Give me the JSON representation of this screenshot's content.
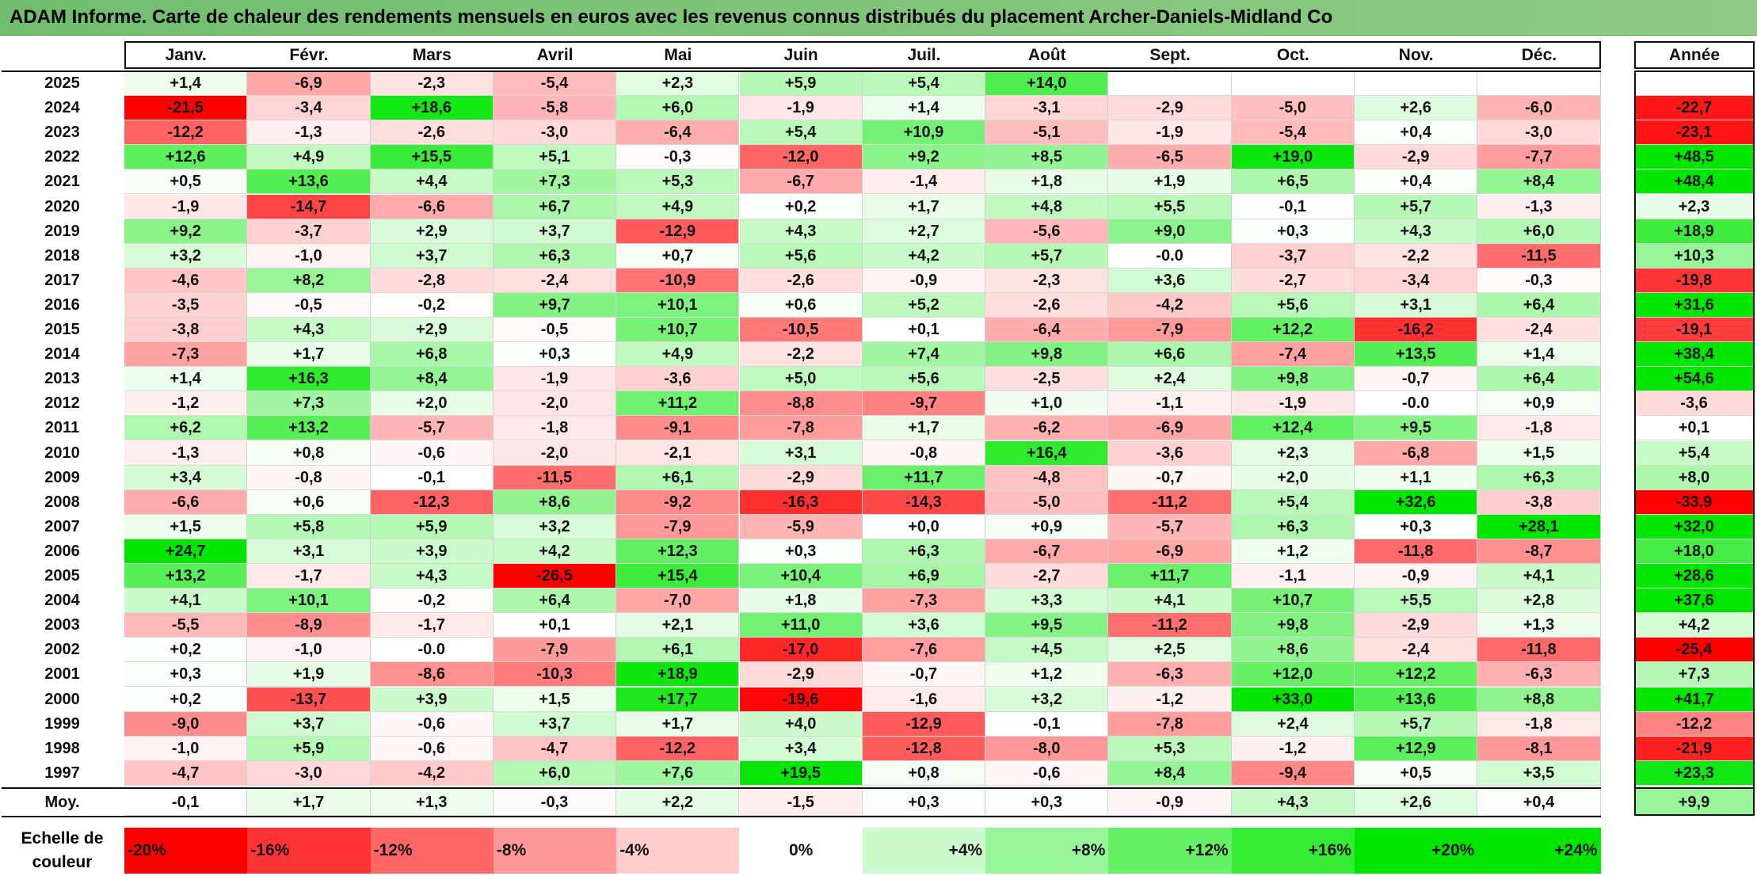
{
  "title": "ADAM Informe. Carte de chaleur des rendements mensuels en euros avec les revenus connus distribués du placement Archer-Daniels-Midland Co",
  "chart_data": {
    "type": "heatmap",
    "columns": [
      "Janv.",
      "Févr.",
      "Mars",
      "Avril",
      "Mai",
      "Juin",
      "Juil.",
      "Août",
      "Sept.",
      "Oct.",
      "Nov.",
      "Déc."
    ],
    "annual_header": "Année",
    "rows": [
      {
        "year": "2025",
        "values": [
          1.4,
          -6.9,
          -2.3,
          -5.4,
          2.3,
          5.9,
          5.4,
          14.0,
          null,
          null,
          null,
          null
        ],
        "annual": null
      },
      {
        "year": "2024",
        "values": [
          -21.5,
          -3.4,
          18.6,
          -5.8,
          6.0,
          -1.9,
          1.4,
          -3.1,
          -2.9,
          -5.0,
          2.6,
          -6.0
        ],
        "annual": -22.7
      },
      {
        "year": "2023",
        "values": [
          -12.2,
          -1.3,
          -2.6,
          -3.0,
          -6.4,
          5.4,
          10.9,
          -5.1,
          -1.9,
          -5.4,
          0.4,
          -3.0
        ],
        "annual": -23.1
      },
      {
        "year": "2022",
        "values": [
          12.6,
          4.9,
          15.5,
          5.1,
          -0.3,
          -12.0,
          9.2,
          8.5,
          -6.5,
          19.0,
          -2.9,
          -7.7
        ],
        "annual": 48.5
      },
      {
        "year": "2021",
        "values": [
          0.5,
          13.6,
          4.4,
          7.3,
          5.3,
          -6.7,
          -1.4,
          1.8,
          1.9,
          6.5,
          0.4,
          8.4
        ],
        "annual": 48.4
      },
      {
        "year": "2020",
        "values": [
          -1.9,
          -14.7,
          -6.6,
          6.7,
          4.9,
          0.2,
          1.7,
          4.8,
          5.5,
          -0.1,
          5.7,
          -1.3
        ],
        "annual": 2.3
      },
      {
        "year": "2019",
        "values": [
          9.2,
          -3.7,
          2.9,
          3.7,
          -12.9,
          4.3,
          2.7,
          -5.6,
          9.0,
          0.3,
          4.3,
          6.0
        ],
        "annual": 18.9
      },
      {
        "year": "2018",
        "values": [
          3.2,
          -1.0,
          3.7,
          6.3,
          0.7,
          5.6,
          4.2,
          5.7,
          "-0.0",
          -3.7,
          -2.2,
          -11.5
        ],
        "annual": 10.3
      },
      {
        "year": "2017",
        "values": [
          -4.6,
          8.2,
          -2.8,
          -2.4,
          -10.9,
          -2.6,
          -0.9,
          -2.3,
          3.6,
          -2.7,
          -3.4,
          -0.3
        ],
        "annual": -19.8
      },
      {
        "year": "2016",
        "values": [
          -3.5,
          -0.5,
          -0.2,
          9.7,
          10.1,
          0.6,
          5.2,
          -2.6,
          -4.2,
          5.6,
          3.1,
          6.4
        ],
        "annual": 31.6
      },
      {
        "year": "2015",
        "values": [
          -3.8,
          4.3,
          2.9,
          -0.5,
          10.7,
          -10.5,
          0.1,
          -6.4,
          -7.9,
          12.2,
          -16.2,
          -2.4
        ],
        "annual": -19.1
      },
      {
        "year": "2014",
        "values": [
          -7.3,
          1.7,
          6.8,
          0.3,
          4.9,
          -2.2,
          7.4,
          9.8,
          6.6,
          -7.4,
          13.5,
          1.4
        ],
        "annual": 38.4
      },
      {
        "year": "2013",
        "values": [
          1.4,
          16.3,
          8.4,
          -1.9,
          -3.6,
          5.0,
          5.6,
          -2.5,
          2.4,
          9.8,
          -0.7,
          6.4
        ],
        "annual": 54.6
      },
      {
        "year": "2012",
        "values": [
          -1.2,
          7.3,
          2.0,
          -2.0,
          11.2,
          -8.8,
          -9.7,
          1.0,
          -1.1,
          -1.9,
          "-0.0",
          0.9
        ],
        "annual": -3.6
      },
      {
        "year": "2011",
        "values": [
          6.2,
          13.2,
          -5.7,
          -1.8,
          -9.1,
          -7.8,
          1.7,
          -6.2,
          -6.9,
          12.4,
          9.5,
          -1.8
        ],
        "annual": 0.1
      },
      {
        "year": "2010",
        "values": [
          -1.3,
          0.8,
          -0.6,
          -2.0,
          -2.1,
          3.1,
          -0.8,
          16.4,
          -3.6,
          2.3,
          -6.8,
          1.5
        ],
        "annual": 5.4
      },
      {
        "year": "2009",
        "values": [
          3.4,
          -0.8,
          -0.1,
          -11.5,
          6.1,
          -2.9,
          11.7,
          -4.8,
          -0.7,
          2.0,
          1.1,
          6.3
        ],
        "annual": 8.0
      },
      {
        "year": "2008",
        "values": [
          -6.6,
          0.6,
          -12.3,
          8.6,
          -9.2,
          -16.3,
          -14.3,
          -5.0,
          -11.2,
          5.4,
          32.6,
          -3.8
        ],
        "annual": -33.9
      },
      {
        "year": "2007",
        "values": [
          1.5,
          5.8,
          5.9,
          3.2,
          -7.9,
          -5.9,
          0.0,
          0.9,
          -5.7,
          6.3,
          0.3,
          28.1
        ],
        "annual": 32.0
      },
      {
        "year": "2006",
        "values": [
          24.7,
          3.1,
          3.9,
          4.2,
          12.3,
          0.3,
          6.3,
          -6.7,
          -6.9,
          1.2,
          -11.8,
          -8.7
        ],
        "annual": 18.0
      },
      {
        "year": "2005",
        "values": [
          13.2,
          -1.7,
          4.3,
          -26.5,
          15.4,
          10.4,
          6.9,
          -2.7,
          11.7,
          -1.1,
          -0.9,
          4.1
        ],
        "annual": 28.6
      },
      {
        "year": "2004",
        "values": [
          4.1,
          10.1,
          -0.2,
          6.4,
          -7.0,
          1.8,
          -7.3,
          3.3,
          4.1,
          10.7,
          5.5,
          2.8
        ],
        "annual": 37.6
      },
      {
        "year": "2003",
        "values": [
          -5.5,
          -8.9,
          -1.7,
          0.1,
          2.1,
          11.0,
          3.6,
          9.5,
          -11.2,
          9.8,
          -2.9,
          1.3
        ],
        "annual": 4.2
      },
      {
        "year": "2002",
        "values": [
          0.2,
          -1.0,
          "-0.0",
          -7.9,
          6.1,
          -17.0,
          -7.6,
          4.5,
          2.5,
          8.6,
          -2.4,
          -11.8
        ],
        "annual": -25.4
      },
      {
        "year": "2001",
        "values": [
          0.3,
          1.9,
          -8.6,
          -10.3,
          18.9,
          -2.9,
          -0.7,
          1.2,
          -6.3,
          12.0,
          12.2,
          -6.3
        ],
        "annual": 7.3
      },
      {
        "year": "2000",
        "values": [
          0.2,
          -13.7,
          3.9,
          1.5,
          17.7,
          -19.6,
          -1.6,
          3.2,
          -1.2,
          33.0,
          13.6,
          8.8
        ],
        "annual": 41.7
      },
      {
        "year": "1999",
        "values": [
          -9.0,
          3.7,
          -0.6,
          3.7,
          1.7,
          4.0,
          -12.9,
          -0.1,
          -7.8,
          2.4,
          5.7,
          -1.8
        ],
        "annual": -12.2
      },
      {
        "year": "1998",
        "values": [
          -1.0,
          5.9,
          -0.6,
          -4.7,
          -12.2,
          3.4,
          -12.8,
          -8.0,
          5.3,
          -1.2,
          12.9,
          -8.1
        ],
        "annual": -21.9
      },
      {
        "year": "1997",
        "values": [
          -4.7,
          -3.0,
          -4.2,
          6.0,
          7.6,
          19.5,
          0.8,
          -0.6,
          8.4,
          -9.4,
          0.5,
          3.5
        ],
        "annual": 23.3
      }
    ],
    "average": {
      "label": "Moy.",
      "values": [
        -0.1,
        1.7,
        1.3,
        -0.3,
        2.2,
        -1.5,
        0.3,
        0.3,
        -0.9,
        4.3,
        2.6,
        0.4
      ],
      "annual": 9.9
    },
    "color_scale": {
      "label": "Echelle de couleur",
      "stops": [
        "-20%",
        "-16%",
        "-12%",
        "-8%",
        "-4%",
        "0%",
        "+4%",
        "+8%",
        "+12%",
        "+16%",
        "+20%",
        "+24%"
      ],
      "stop_values": [
        -20,
        -16,
        -12,
        -8,
        -4,
        0,
        4,
        8,
        12,
        16,
        20,
        24
      ],
      "negative_color": "#ff0000",
      "neutral_color": "#ffffff",
      "positive_color": "#00e600"
    }
  }
}
